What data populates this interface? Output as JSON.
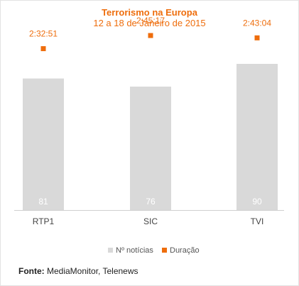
{
  "chart_data": {
    "type": "bar",
    "title": "Terrorismo na Europa",
    "subtitle": "12 a 18 de Janeiro de 2015",
    "categories": [
      "RTP1",
      "SIC",
      "TVI"
    ],
    "series": [
      {
        "name": "Nº notícias",
        "type": "bar",
        "color": "#d9d9d9",
        "values": [
          81,
          76,
          90
        ]
      },
      {
        "name": "Duração",
        "type": "scatter",
        "color": "#ee6d0c",
        "values": [
          "2:32:51",
          "2:45:17",
          "2:43:04"
        ],
        "seconds": [
          9171,
          9917,
          9784
        ]
      }
    ],
    "ylim": [
      0,
      90
    ],
    "secondary_ylim": [
      0,
      10000
    ],
    "grid": false,
    "legend_position": "bottom"
  },
  "source": {
    "label": "Fonte:",
    "text": " MediaMonitor, Telenews"
  }
}
